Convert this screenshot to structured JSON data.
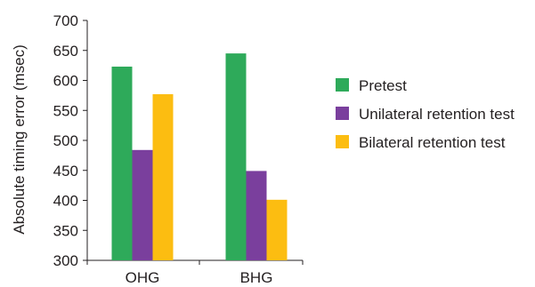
{
  "chart_data": {
    "type": "bar",
    "categories": [
      "OHG",
      "BHG"
    ],
    "series": [
      {
        "name": "Pretest",
        "values": [
          623,
          645
        ],
        "color": "#2eaa5a"
      },
      {
        "name": "Unilateral retention test",
        "values": [
          484,
          449
        ],
        "color": "#7a3f9d"
      },
      {
        "name": "Bilateral retention test",
        "values": [
          577,
          401
        ],
        "color": "#fcbd11"
      }
    ],
    "ylabel": "Absolute timing error (msec)",
    "xlabel": "",
    "ylim": [
      300,
      700
    ],
    "yticks": [
      300,
      350,
      400,
      450,
      500,
      550,
      600,
      650,
      700
    ],
    "grid": false,
    "legend_position": "right"
  }
}
